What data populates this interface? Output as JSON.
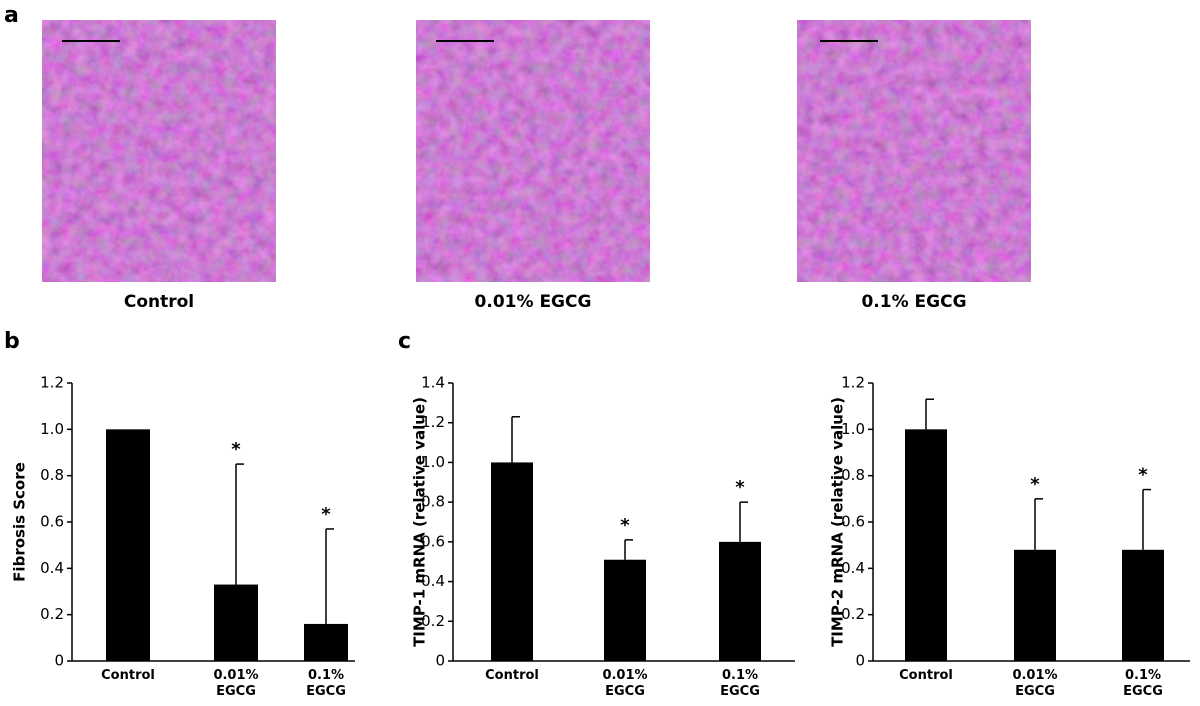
{
  "figure": {
    "panel_labels": [
      "a",
      "b",
      "c"
    ],
    "image_captions": [
      "Control",
      "0.01% EGCG",
      "0.1% EGCG"
    ]
  },
  "chart_data": [
    {
      "type": "bar",
      "ylabel": "Fibrosis Score",
      "categories": [
        "Control",
        "0.01%\nEGCG",
        "0.1%\nEGCG"
      ],
      "values": [
        1.0,
        0.33,
        0.16
      ],
      "errors": [
        null,
        0.52,
        0.41
      ],
      "color": "#000000",
      "annotations": [
        {
          "category": 1,
          "text": "*"
        },
        {
          "category": 2,
          "text": "*"
        }
      ],
      "ylim": [
        0,
        1.2
      ],
      "yticks": [
        0,
        0.2,
        0.4,
        0.6,
        0.8,
        {
          "value": 1,
          "label": "1.0"
        },
        1.2
      ]
    },
    {
      "type": "bar",
      "ylabel": "TIMP-1 mRNA (relative value)",
      "categories": [
        "Control",
        "0.01%\nEGCG",
        "0.1%\nEGCG"
      ],
      "values": [
        1.0,
        0.51,
        0.6
      ],
      "errors": [
        0.23,
        0.1,
        0.2
      ],
      "color": "#000000",
      "annotations": [
        {
          "category": 1,
          "text": "*"
        },
        {
          "category": 2,
          "text": "*"
        }
      ],
      "ylim": [
        0,
        1.4
      ],
      "yticks": [
        0,
        0.2,
        0.4,
        0.6,
        0.8,
        {
          "value": 1,
          "label": "1.0"
        },
        1.2,
        1.4
      ]
    },
    {
      "type": "bar",
      "ylabel": "TIMP-2 mRNA (relative value)",
      "categories": [
        "Control",
        "0.01%\nEGCG",
        "0.1%\nEGCG"
      ],
      "values": [
        1.0,
        0.48,
        0.48
      ],
      "errors": [
        0.13,
        0.22,
        0.26
      ],
      "color": "#000000",
      "annotations": [
        {
          "category": 1,
          "text": "*"
        },
        {
          "category": 2,
          "text": "*"
        }
      ],
      "ylim": [
        0,
        1.2
      ],
      "yticks": [
        0,
        0.2,
        0.4,
        0.6,
        0.8,
        {
          "value": 1,
          "label": "1.0"
        },
        1.2
      ]
    }
  ]
}
